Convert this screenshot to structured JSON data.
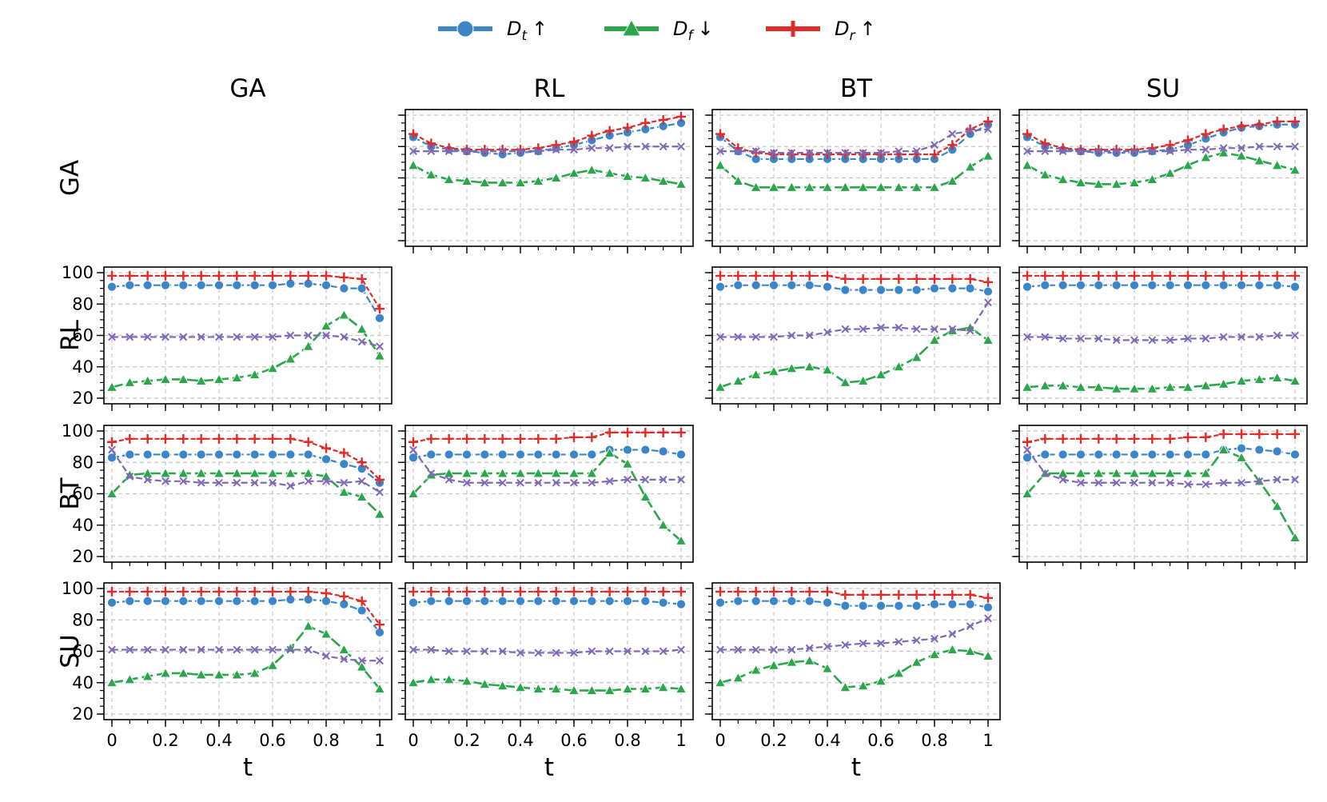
{
  "legend": {
    "items": [
      {
        "name": "D_t ↑",
        "main": "D",
        "sub": "t",
        "arrow": "↑",
        "color": "#3a86c8",
        "marker": "circle"
      },
      {
        "name": "D_f ↓",
        "main": "D",
        "sub": "f",
        "arrow": "↓",
        "color": "#2ca64d",
        "marker": "triangle"
      },
      {
        "name": "D_r ↑",
        "main": "D",
        "sub": "r",
        "arrow": "↑",
        "color": "#e02b28",
        "marker": "plus"
      }
    ]
  },
  "column_headers": [
    "GA",
    "RL",
    "BT",
    "SU"
  ],
  "row_headers": [
    "GA",
    "RL",
    "BT",
    "SU"
  ],
  "xlabel": "t",
  "x_ticks": [
    "0",
    "0.2",
    "0.4",
    "0.6",
    "0.8",
    "1"
  ],
  "y_ticks": [
    "20",
    "40",
    "60",
    "80",
    "100"
  ],
  "colors": {
    "Dt": "#3a86c8",
    "Df": "#2ca64d",
    "Dr": "#e02b28",
    "other": "#7d69b5",
    "grid": "#c8c8c8"
  },
  "chart_data": {
    "type": "line",
    "grid": true,
    "legend_position": "top-center",
    "xlim": [
      0,
      1
    ],
    "ylim": [
      20,
      100
    ],
    "x": [
      0,
      0.0667,
      0.1333,
      0.2,
      0.2667,
      0.3333,
      0.4,
      0.4667,
      0.5333,
      0.6,
      0.6667,
      0.7333,
      0.8,
      0.8667,
      0.9333,
      1.0
    ],
    "series_order": [
      "Dt",
      "Df",
      "Dr",
      "other"
    ],
    "panels": [
      {
        "row": "GA",
        "col": "RL",
        "show_ytick_labels": false,
        "series": {
          "Dt": [
            86,
            80,
            78,
            77,
            76,
            75,
            76,
            77,
            79,
            81,
            84,
            87,
            89,
            91,
            93,
            95
          ],
          "Df": [
            68,
            62,
            59,
            58,
            57,
            57,
            57,
            58,
            60,
            63,
            65,
            63,
            61,
            60,
            58,
            56
          ],
          "Dr": [
            88,
            82,
            79,
            78,
            78,
            78,
            78,
            79,
            81,
            83,
            87,
            90,
            92,
            95,
            97,
            99
          ],
          "other": [
            77,
            77,
            77,
            77,
            77,
            77,
            77,
            77,
            78,
            78,
            79,
            79,
            80,
            80,
            80,
            80
          ]
        }
      },
      {
        "row": "GA",
        "col": "BT",
        "show_ytick_labels": false,
        "series": {
          "Dt": [
            86,
            77,
            72,
            72,
            72,
            72,
            72,
            72,
            72,
            72,
            72,
            72,
            72,
            78,
            88,
            94
          ],
          "Df": [
            68,
            58,
            54,
            54,
            54,
            54,
            54,
            54,
            54,
            54,
            54,
            54,
            54,
            58,
            67,
            74
          ],
          "Dr": [
            88,
            79,
            76,
            75,
            75,
            75,
            75,
            75,
            75,
            75,
            75,
            75,
            75,
            81,
            91,
            96
          ],
          "other": [
            77,
            77,
            77,
            76,
            76,
            76,
            76,
            76,
            76,
            76,
            77,
            77,
            81,
            88,
            90,
            91
          ]
        }
      },
      {
        "row": "GA",
        "col": "SU",
        "show_ytick_labels": false,
        "series": {
          "Dt": [
            86,
            80,
            78,
            77,
            76,
            76,
            76,
            77,
            78,
            81,
            85,
            89,
            92,
            93,
            94,
            94
          ],
          "Df": [
            68,
            62,
            59,
            57,
            56,
            56,
            57,
            59,
            63,
            68,
            73,
            76,
            74,
            71,
            68,
            65
          ],
          "Dr": [
            88,
            82,
            79,
            78,
            78,
            78,
            78,
            79,
            81,
            84,
            88,
            91,
            93,
            94,
            96,
            96
          ],
          "other": [
            77,
            77,
            77,
            77,
            77,
            77,
            77,
            77,
            77,
            78,
            78,
            79,
            79,
            80,
            80,
            80
          ]
        }
      },
      {
        "row": "RL",
        "col": "GA",
        "show_ytick_labels": true,
        "series": {
          "Dt": [
            91,
            92,
            92,
            92,
            92,
            92,
            92,
            92,
            92,
            92,
            93,
            93,
            92,
            90,
            90,
            71
          ],
          "Df": [
            27,
            30,
            31,
            32,
            32,
            31,
            32,
            33,
            35,
            39,
            45,
            53,
            66,
            73,
            64,
            47
          ],
          "Dr": [
            98,
            98,
            98,
            98,
            98,
            98,
            98,
            98,
            98,
            98,
            98,
            98,
            98,
            97,
            96,
            77
          ],
          "other": [
            59,
            59,
            59,
            59,
            59,
            59,
            59,
            59,
            59,
            59,
            60,
            60,
            60,
            59,
            56,
            53
          ]
        }
      },
      {
        "row": "RL",
        "col": "BT",
        "show_ytick_labels": false,
        "series": {
          "Dt": [
            91,
            92,
            92,
            92,
            92,
            92,
            91,
            89,
            89,
            89,
            89,
            89,
            90,
            90,
            90,
            88
          ],
          "Df": [
            27,
            31,
            35,
            37,
            39,
            40,
            38,
            30,
            31,
            35,
            40,
            46,
            57,
            63,
            65,
            57
          ],
          "Dr": [
            98,
            98,
            98,
            98,
            98,
            98,
            98,
            96,
            96,
            96,
            96,
            96,
            96,
            96,
            96,
            94
          ],
          "other": [
            59,
            59,
            59,
            59,
            60,
            60,
            62,
            64,
            64,
            65,
            65,
            64,
            64,
            64,
            63,
            81
          ]
        }
      },
      {
        "row": "RL",
        "col": "SU",
        "show_ytick_labels": false,
        "series": {
          "Dt": [
            91,
            92,
            92,
            92,
            92,
            92,
            92,
            92,
            92,
            92,
            92,
            92,
            92,
            92,
            92,
            91
          ],
          "Df": [
            27,
            28,
            28,
            27,
            27,
            26,
            26,
            26,
            27,
            27,
            28,
            29,
            31,
            32,
            33,
            31
          ],
          "Dr": [
            98,
            98,
            98,
            98,
            98,
            98,
            98,
            98,
            98,
            98,
            98,
            98,
            98,
            98,
            98,
            98
          ],
          "other": [
            59,
            59,
            58,
            58,
            58,
            57,
            57,
            57,
            57,
            58,
            58,
            59,
            59,
            59,
            60,
            60
          ]
        }
      },
      {
        "row": "BT",
        "col": "GA",
        "show_ytick_labels": true,
        "series": {
          "Dt": [
            83,
            85,
            85,
            85,
            85,
            85,
            85,
            85,
            85,
            85,
            85,
            85,
            82,
            79,
            76,
            67
          ],
          "Df": [
            60,
            72,
            73,
            73,
            73,
            73,
            73,
            73,
            73,
            73,
            73,
            73,
            71,
            61,
            58,
            47
          ],
          "Dr": [
            93,
            95,
            95,
            95,
            95,
            95,
            95,
            95,
            95,
            95,
            95,
            93,
            89,
            86,
            80,
            69
          ],
          "other": [
            88,
            71,
            69,
            68,
            68,
            67,
            67,
            67,
            67,
            67,
            65,
            68,
            68,
            67,
            68,
            61
          ]
        }
      },
      {
        "row": "BT",
        "col": "RL",
        "show_ytick_labels": false,
        "series": {
          "Dt": [
            83,
            85,
            85,
            85,
            85,
            85,
            85,
            85,
            85,
            85,
            85,
            88,
            88,
            88,
            87,
            85
          ],
          "Df": [
            60,
            72,
            73,
            73,
            73,
            73,
            73,
            73,
            73,
            73,
            73,
            86,
            79,
            58,
            40,
            30
          ],
          "Dr": [
            93,
            95,
            95,
            95,
            95,
            95,
            95,
            95,
            95,
            96,
            96,
            99,
            99,
            99,
            99,
            99
          ],
          "other": [
            88,
            73,
            69,
            67,
            67,
            67,
            67,
            67,
            67,
            67,
            67,
            68,
            69,
            69,
            69,
            69
          ]
        }
      },
      {
        "row": "BT",
        "col": "SU",
        "show_ytick_labels": false,
        "series": {
          "Dt": [
            83,
            85,
            85,
            85,
            85,
            85,
            85,
            85,
            85,
            85,
            85,
            88,
            89,
            88,
            87,
            85
          ],
          "Df": [
            60,
            73,
            73,
            73,
            73,
            73,
            73,
            73,
            73,
            73,
            73,
            88,
            83,
            68,
            52,
            32
          ],
          "Dr": [
            93,
            95,
            95,
            95,
            95,
            95,
            95,
            95,
            95,
            96,
            96,
            98,
            98,
            98,
            98,
            98
          ],
          "other": [
            88,
            73,
            69,
            67,
            67,
            67,
            67,
            67,
            67,
            66,
            66,
            67,
            67,
            68,
            69,
            69
          ]
        }
      },
      {
        "row": "SU",
        "col": "GA",
        "show_ytick_labels": true,
        "series": {
          "Dt": [
            91,
            92,
            92,
            92,
            92,
            92,
            92,
            92,
            92,
            92,
            93,
            93,
            92,
            90,
            86,
            72
          ],
          "Df": [
            40,
            42,
            44,
            46,
            46,
            45,
            45,
            45,
            46,
            51,
            62,
            76,
            71,
            61,
            50,
            36
          ],
          "Dr": [
            98,
            98,
            98,
            98,
            98,
            98,
            98,
            98,
            98,
            98,
            98,
            98,
            97,
            95,
            92,
            77
          ],
          "other": [
            61,
            61,
            61,
            61,
            61,
            61,
            61,
            61,
            61,
            61,
            61,
            61,
            57,
            55,
            54,
            54
          ]
        }
      },
      {
        "row": "SU",
        "col": "RL",
        "show_ytick_labels": false,
        "series": {
          "Dt": [
            91,
            92,
            92,
            92,
            92,
            92,
            92,
            92,
            92,
            92,
            92,
            92,
            92,
            92,
            91,
            90
          ],
          "Df": [
            40,
            42,
            42,
            41,
            39,
            38,
            37,
            36,
            36,
            35,
            35,
            35,
            36,
            36,
            37,
            36
          ],
          "Dr": [
            98,
            98,
            98,
            98,
            98,
            98,
            98,
            98,
            98,
            98,
            98,
            98,
            98,
            98,
            98,
            98
          ],
          "other": [
            61,
            61,
            60,
            60,
            60,
            60,
            59,
            59,
            59,
            59,
            60,
            60,
            60,
            60,
            60,
            61
          ]
        }
      },
      {
        "row": "SU",
        "col": "BT",
        "show_ytick_labels": false,
        "series": {
          "Dt": [
            91,
            92,
            92,
            92,
            92,
            92,
            91,
            89,
            89,
            89,
            89,
            89,
            90,
            90,
            90,
            88
          ],
          "Df": [
            40,
            43,
            48,
            51,
            53,
            54,
            49,
            37,
            38,
            41,
            46,
            53,
            58,
            61,
            60,
            57
          ],
          "Dr": [
            98,
            98,
            98,
            98,
            98,
            98,
            98,
            96,
            96,
            96,
            96,
            96,
            96,
            96,
            96,
            94
          ],
          "other": [
            61,
            61,
            61,
            61,
            61,
            62,
            63,
            64,
            65,
            65,
            66,
            67,
            68,
            71,
            76,
            81
          ]
        }
      }
    ]
  }
}
